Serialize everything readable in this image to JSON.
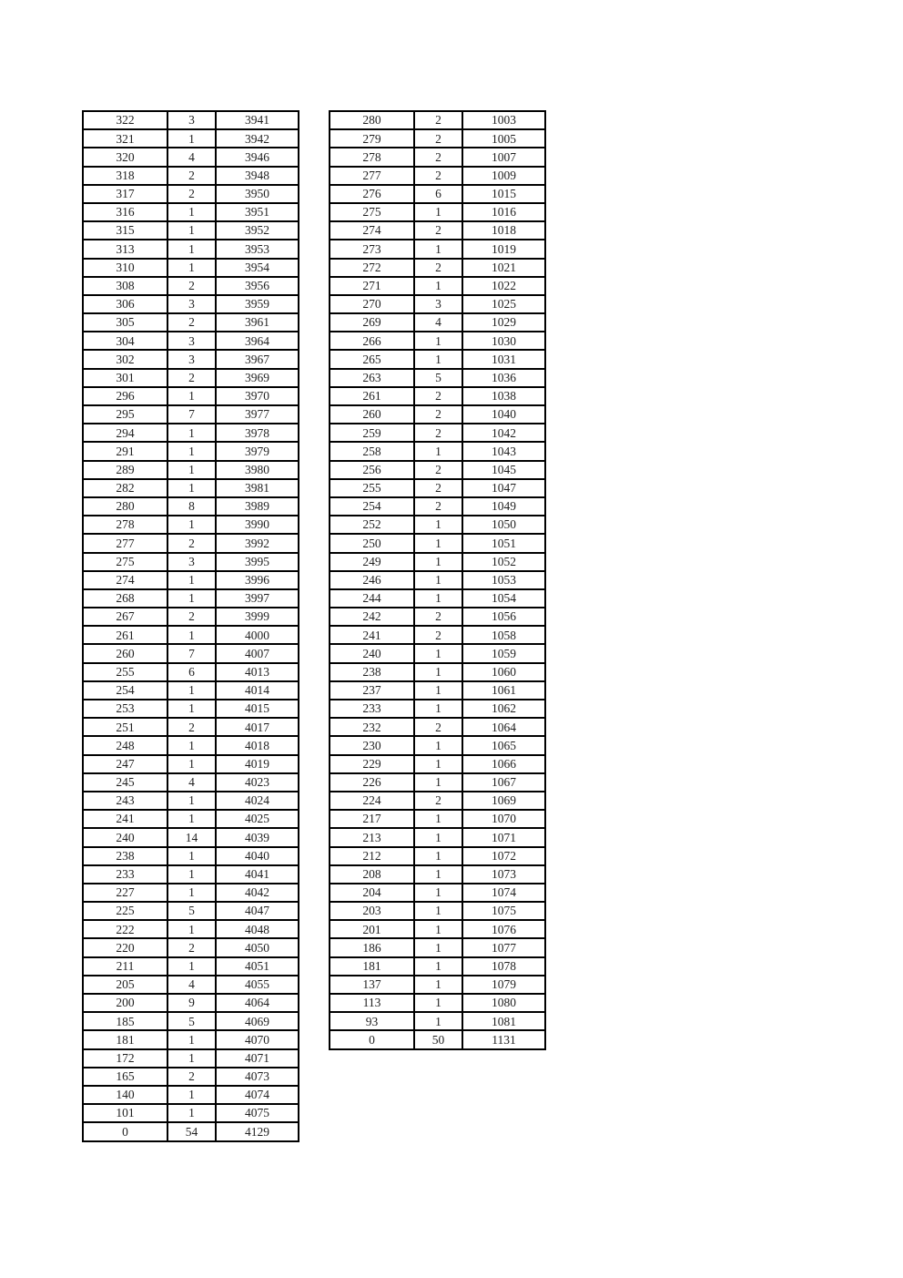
{
  "page": {
    "background_color": "#ffffff",
    "border_color": "#000000",
    "text_color": "#1f1f1f"
  },
  "tables": [
    {
      "id": "score-table-left",
      "rows": [
        [
          "322",
          "3",
          "3941"
        ],
        [
          "321",
          "1",
          "3942"
        ],
        [
          "320",
          "4",
          "3946"
        ],
        [
          "318",
          "2",
          "3948"
        ],
        [
          "317",
          "2",
          "3950"
        ],
        [
          "316",
          "1",
          "3951"
        ],
        [
          "315",
          "1",
          "3952"
        ],
        [
          "313",
          "1",
          "3953"
        ],
        [
          "310",
          "1",
          "3954"
        ],
        [
          "308",
          "2",
          "3956"
        ],
        [
          "306",
          "3",
          "3959"
        ],
        [
          "305",
          "2",
          "3961"
        ],
        [
          "304",
          "3",
          "3964"
        ],
        [
          "302",
          "3",
          "3967"
        ],
        [
          "301",
          "2",
          "3969"
        ],
        [
          "296",
          "1",
          "3970"
        ],
        [
          "295",
          "7",
          "3977"
        ],
        [
          "294",
          "1",
          "3978"
        ],
        [
          "291",
          "1",
          "3979"
        ],
        [
          "289",
          "1",
          "3980"
        ],
        [
          "282",
          "1",
          "3981"
        ],
        [
          "280",
          "8",
          "3989"
        ],
        [
          "278",
          "1",
          "3990"
        ],
        [
          "277",
          "2",
          "3992"
        ],
        [
          "275",
          "3",
          "3995"
        ],
        [
          "274",
          "1",
          "3996"
        ],
        [
          "268",
          "1",
          "3997"
        ],
        [
          "267",
          "2",
          "3999"
        ],
        [
          "261",
          "1",
          "4000"
        ],
        [
          "260",
          "7",
          "4007"
        ],
        [
          "255",
          "6",
          "4013"
        ],
        [
          "254",
          "1",
          "4014"
        ],
        [
          "253",
          "1",
          "4015"
        ],
        [
          "251",
          "2",
          "4017"
        ],
        [
          "248",
          "1",
          "4018"
        ],
        [
          "247",
          "1",
          "4019"
        ],
        [
          "245",
          "4",
          "4023"
        ],
        [
          "243",
          "1",
          "4024"
        ],
        [
          "241",
          "1",
          "4025"
        ],
        [
          "240",
          "14",
          "4039"
        ],
        [
          "238",
          "1",
          "4040"
        ],
        [
          "233",
          "1",
          "4041"
        ],
        [
          "227",
          "1",
          "4042"
        ],
        [
          "225",
          "5",
          "4047"
        ],
        [
          "222",
          "1",
          "4048"
        ],
        [
          "220",
          "2",
          "4050"
        ],
        [
          "211",
          "1",
          "4051"
        ],
        [
          "205",
          "4",
          "4055"
        ],
        [
          "200",
          "9",
          "4064"
        ],
        [
          "185",
          "5",
          "4069"
        ],
        [
          "181",
          "1",
          "4070"
        ],
        [
          "172",
          "1",
          "4071"
        ],
        [
          "165",
          "2",
          "4073"
        ],
        [
          "140",
          "1",
          "4074"
        ],
        [
          "101",
          "1",
          "4075"
        ],
        [
          "0",
          "54",
          "4129"
        ]
      ]
    },
    {
      "id": "score-table-right",
      "rows": [
        [
          "280",
          "2",
          "1003"
        ],
        [
          "279",
          "2",
          "1005"
        ],
        [
          "278",
          "2",
          "1007"
        ],
        [
          "277",
          "2",
          "1009"
        ],
        [
          "276",
          "6",
          "1015"
        ],
        [
          "275",
          "1",
          "1016"
        ],
        [
          "274",
          "2",
          "1018"
        ],
        [
          "273",
          "1",
          "1019"
        ],
        [
          "272",
          "2",
          "1021"
        ],
        [
          "271",
          "1",
          "1022"
        ],
        [
          "270",
          "3",
          "1025"
        ],
        [
          "269",
          "4",
          "1029"
        ],
        [
          "266",
          "1",
          "1030"
        ],
        [
          "265",
          "1",
          "1031"
        ],
        [
          "263",
          "5",
          "1036"
        ],
        [
          "261",
          "2",
          "1038"
        ],
        [
          "260",
          "2",
          "1040"
        ],
        [
          "259",
          "2",
          "1042"
        ],
        [
          "258",
          "1",
          "1043"
        ],
        [
          "256",
          "2",
          "1045"
        ],
        [
          "255",
          "2",
          "1047"
        ],
        [
          "254",
          "2",
          "1049"
        ],
        [
          "252",
          "1",
          "1050"
        ],
        [
          "250",
          "1",
          "1051"
        ],
        [
          "249",
          "1",
          "1052"
        ],
        [
          "246",
          "1",
          "1053"
        ],
        [
          "244",
          "1",
          "1054"
        ],
        [
          "242",
          "2",
          "1056"
        ],
        [
          "241",
          "2",
          "1058"
        ],
        [
          "240",
          "1",
          "1059"
        ],
        [
          "238",
          "1",
          "1060"
        ],
        [
          "237",
          "1",
          "1061"
        ],
        [
          "233",
          "1",
          "1062"
        ],
        [
          "232",
          "2",
          "1064"
        ],
        [
          "230",
          "1",
          "1065"
        ],
        [
          "229",
          "1",
          "1066"
        ],
        [
          "226",
          "1",
          "1067"
        ],
        [
          "224",
          "2",
          "1069"
        ],
        [
          "217",
          "1",
          "1070"
        ],
        [
          "213",
          "1",
          "1071"
        ],
        [
          "212",
          "1",
          "1072"
        ],
        [
          "208",
          "1",
          "1073"
        ],
        [
          "204",
          "1",
          "1074"
        ],
        [
          "203",
          "1",
          "1075"
        ],
        [
          "201",
          "1",
          "1076"
        ],
        [
          "186",
          "1",
          "1077"
        ],
        [
          "181",
          "1",
          "1078"
        ],
        [
          "137",
          "1",
          "1079"
        ],
        [
          "113",
          "1",
          "1080"
        ],
        [
          "93",
          "1",
          "1081"
        ],
        [
          "0",
          "50",
          "1131"
        ]
      ]
    }
  ]
}
